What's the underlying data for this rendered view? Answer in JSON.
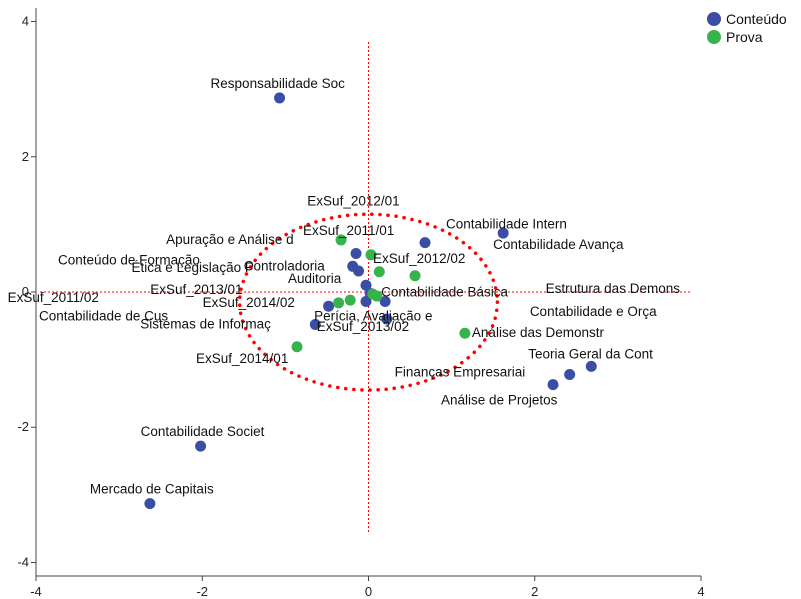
{
  "chart_data": {
    "type": "scatter",
    "title": "",
    "xlabel": "",
    "ylabel": "",
    "xlim": [
      -4,
      4
    ],
    "ylim": [
      -4.2,
      4.2
    ],
    "xticks": [
      "-4",
      "-2",
      "0",
      "2",
      "4"
    ],
    "yticks": [
      "4",
      "2",
      "0",
      "-2",
      "-4"
    ],
    "grid": false,
    "legend_position": "top-right",
    "reference_lines": {
      "x": 0,
      "y": 0,
      "style": "dotted",
      "color": "#ff0000"
    },
    "ellipse": {
      "cx": 0,
      "cy": -0.15,
      "rx": 1.55,
      "ry": 1.3,
      "style": "dotted",
      "color": "#ff0000"
    },
    "series": [
      {
        "name": "Conteúdo",
        "color": "#3a4ea6",
        "points": [
          {
            "label": "Responsabilidade Soc",
            "x": -1.07,
            "y": 2.87
          },
          {
            "label": "Contabilidade Intern",
            "x": 0.68,
            "y": 0.73
          },
          {
            "label": "Contabilidade Avança",
            "x": 1.62,
            "y": 0.87
          },
          {
            "label": "Conteúdo de Formação",
            "x": -0.15,
            "y": 0.57
          },
          {
            "label": "Controladoria",
            "x": -0.19,
            "y": 0.38
          },
          {
            "label": "Ética e Legislação P",
            "x": -0.12,
            "y": 0.31
          },
          {
            "label": "Auditoria",
            "x": -0.03,
            "y": 0.1
          },
          {
            "label": "Contabilidade Básica",
            "x": 0.02,
            "y": -0.02
          },
          {
            "label": "Contabilidade de Cus",
            "x": -0.03,
            "y": -0.14
          },
          {
            "label": "Perícia, Avaliação e",
            "x": 0.2,
            "y": -0.14
          },
          {
            "label": "ExSuf_2014/02",
            "x": -0.48,
            "y": -0.21
          },
          {
            "label": "Sistemas de Informaç",
            "x": -0.64,
            "y": -0.48
          },
          {
            "label": "ExSuf_2013/02",
            "x": 0.22,
            "y": -0.4
          },
          {
            "label": "Teoria Geral da Cont",
            "x": 2.68,
            "y": -1.1
          },
          {
            "label": "Finanças Empresariai",
            "x": 2.42,
            "y": -1.22
          },
          {
            "label": "Análise de Projetos",
            "x": 2.22,
            "y": -1.37
          },
          {
            "label": "Contabilidade Societ",
            "x": -2.02,
            "y": -2.28
          },
          {
            "label": "Mercado de Capitais",
            "x": -2.63,
            "y": -3.13
          }
        ]
      },
      {
        "name": "Prova",
        "color": "#36b34a",
        "points": [
          {
            "label": "Apuração e Análise d",
            "x": -0.33,
            "y": 0.77
          },
          {
            "label": "ExSuf_2011/01",
            "x": 0.03,
            "y": 0.55
          },
          {
            "label": "ExSuf_2012/01",
            "x": 0.13,
            "y": 0.3
          },
          {
            "label": "ExSuf_2012/02",
            "x": 0.56,
            "y": 0.24
          },
          {
            "label": "ExSuf_2014/01",
            "x": -0.86,
            "y": -0.81
          },
          {
            "label": "ExSuf_2011/02",
            "x": -0.36,
            "y": -0.16
          },
          {
            "label": "ExSuf_2013/01",
            "x": -0.22,
            "y": -0.12
          },
          {
            "label": "Estrutura das Demons",
            "x": 0.05,
            "y": -0.03
          },
          {
            "label": "Contabilidade e Orça",
            "x": 0.1,
            "y": -0.06
          },
          {
            "label": "Análise das Demonstr",
            "x": 1.16,
            "y": -0.61
          }
        ]
      }
    ]
  }
}
